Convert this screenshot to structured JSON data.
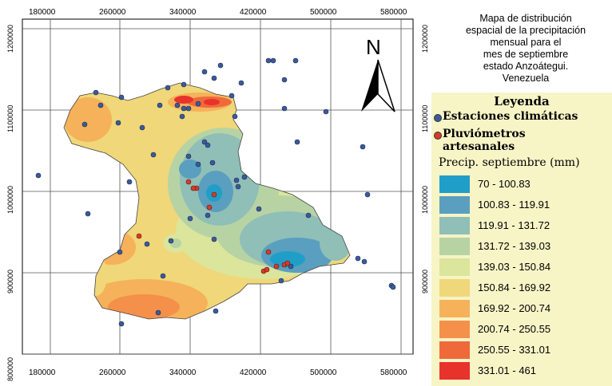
{
  "title_lines": [
    "Mapa de distribución",
    "espacial de la precipitación",
    "mensual para el",
    "mes de septiembre",
    "estado Anzoátegui.",
    "Venezuela"
  ],
  "north_label": "N",
  "axes": {
    "x_ticks": [
      "180000",
      "260000",
      "340000",
      "420000",
      "500000",
      "580000"
    ],
    "y_ticks": [
      "1200000",
      "1100000",
      "1000000",
      "900000",
      "800000"
    ]
  },
  "legend": {
    "title": "Leyenda",
    "stations_label": "Estaciones climáticas",
    "pluvio_label_line1": "Pluviómetros",
    "pluvio_label_line2": "artesanales",
    "precip_title": "Precip. septiembre (mm)",
    "station_color": "#3a5a9e",
    "pluvio_color": "#d93a2b",
    "classes": [
      {
        "label": "70 - 100.83",
        "color": "#1f9fc8"
      },
      {
        "label": "100.83 - 119.91",
        "color": "#5a9fbf"
      },
      {
        "label": "119.91 - 131.72",
        "color": "#8fbfb6"
      },
      {
        "label": "131.72 - 139.03",
        "color": "#b7d3a4"
      },
      {
        "label": "139.03 - 150.84",
        "color": "#dbe59b"
      },
      {
        "label": "150.84 - 169.92",
        "color": "#f0d779"
      },
      {
        "label": "169.92 - 200.74",
        "color": "#f5b25a"
      },
      {
        "label": "200.74 - 250.55",
        "color": "#f4904a"
      },
      {
        "label": "250.55 - 331.01",
        "color": "#ef6a3a"
      },
      {
        "label": "331.01 - 461",
        "color": "#e8322c"
      }
    ]
  }
}
